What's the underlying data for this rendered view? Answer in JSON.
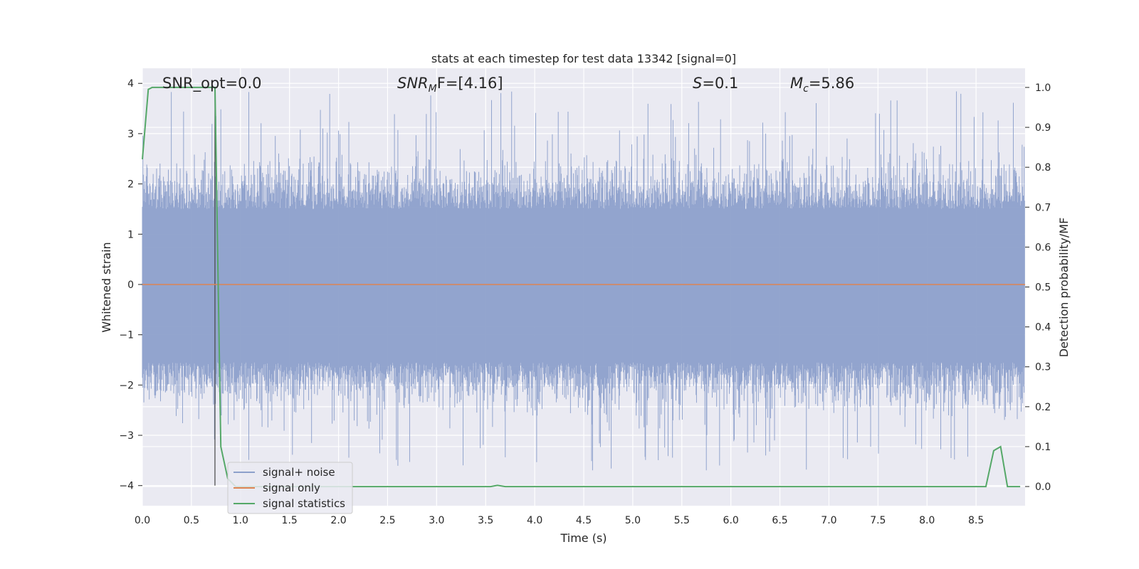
{
  "chart_data": {
    "type": "line",
    "title": "stats at each timestep for test data 13342 [signal=0]",
    "xlabel": "Time (s)",
    "ylabel": "Whitened strain",
    "y2label": "Detection probability/MF",
    "xlim": [
      0.0,
      9.0
    ],
    "ylim": [
      -4.4,
      4.3
    ],
    "y2lim": [
      -0.048,
      1.048
    ],
    "xticks": [
      "0.0",
      "0.5",
      "1.0",
      "1.5",
      "2.0",
      "2.5",
      "3.0",
      "3.5",
      "4.0",
      "4.5",
      "5.0",
      "5.5",
      "6.0",
      "6.5",
      "7.0",
      "7.5",
      "8.0",
      "8.5"
    ],
    "yticks": [
      "−4",
      "−3",
      "−2",
      "−1",
      "0",
      "1",
      "2",
      "3",
      "4"
    ],
    "y2ticks": [
      "0.0",
      "0.1",
      "0.2",
      "0.3",
      "0.4",
      "0.5",
      "0.6",
      "0.7",
      "0.8",
      "0.9",
      "1.0"
    ],
    "grid": true,
    "legend_position": "lower-left",
    "annotations": {
      "snr_opt": "SNR_opt=0.0",
      "snr_mf_main": "SNR",
      "snr_mf_sub": "M",
      "snr_mf_rest": "F=[4.16]",
      "s_main": "S",
      "s_rest": "=0.1",
      "mc_main": "M",
      "mc_sub": "c",
      "mc_rest": "=5.86"
    },
    "marker_line_x": 0.74,
    "series": [
      {
        "name": "signal+ noise",
        "color": "#8da0cb",
        "description_values": "dense noise, typical range [-1.8, 2.0], peaks up to 3.9 and down to -3.7"
      },
      {
        "name": "signal only",
        "color": "#dd8452",
        "values_constant": 0.0
      },
      {
        "name": "signal statistics",
        "color": "#55a868",
        "axis": "right",
        "x": [
          0.0,
          0.06,
          0.1,
          0.7,
          0.74,
          0.8,
          0.87,
          0.95,
          3.55,
          3.62,
          3.7,
          8.6,
          8.68,
          8.75,
          8.82,
          8.95
        ],
        "values": [
          0.82,
          0.995,
          1.0,
          1.0,
          1.0,
          0.1,
          0.02,
          0.0,
          0.0,
          0.003,
          0.0,
          0.0,
          0.09,
          0.1,
          0.0,
          0.0
        ]
      }
    ]
  }
}
